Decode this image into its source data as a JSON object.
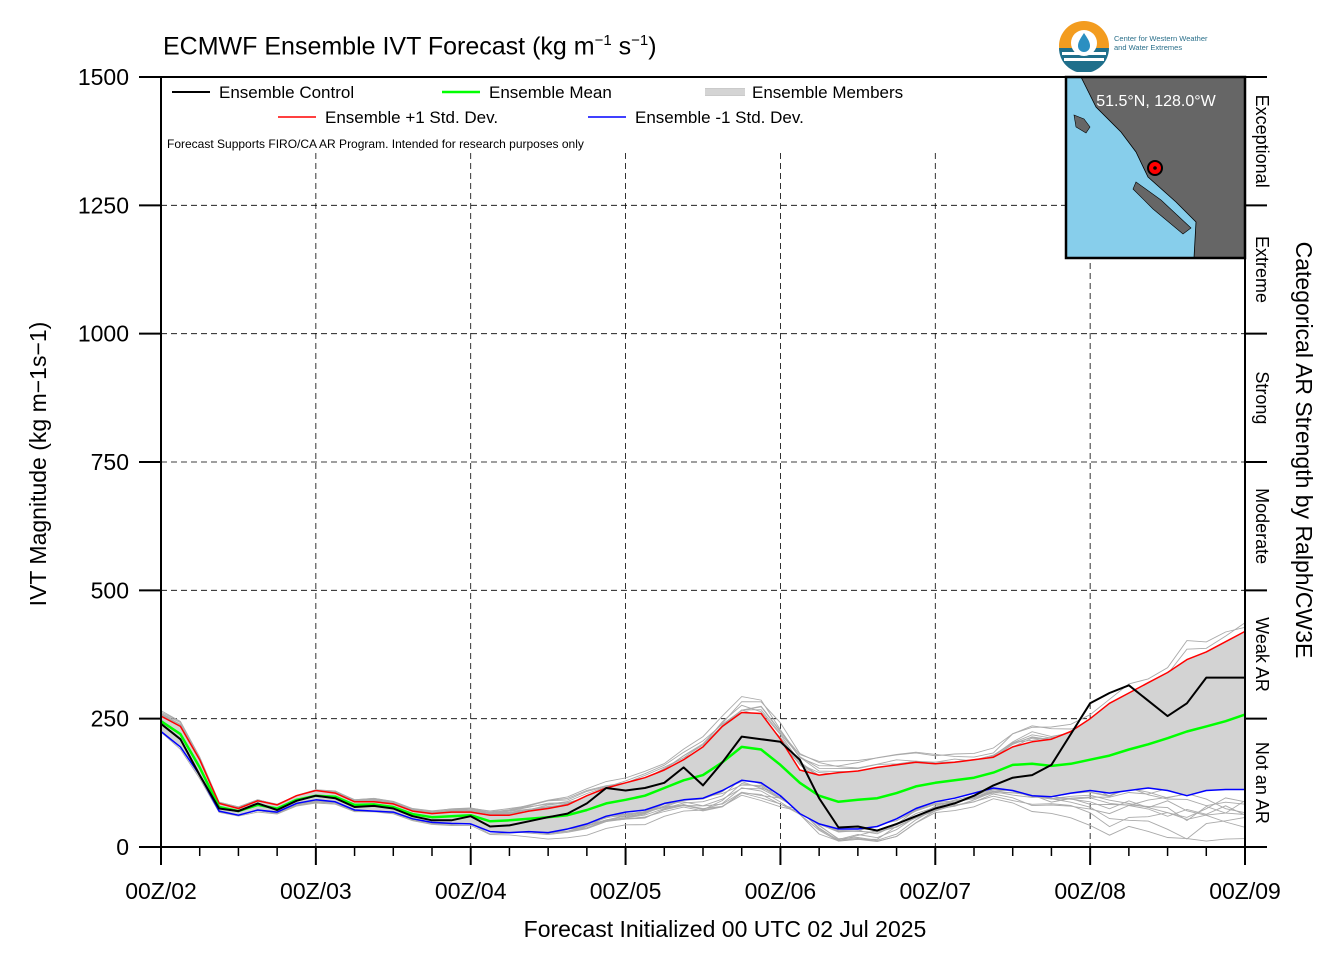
{
  "title": {
    "main": "ECMWF Ensemble IVT Forecast (kg m",
    "exp1": "−1",
    "mid": " s",
    "exp2": "−1",
    "end": ")"
  },
  "logo": {
    "line1": "Center for Western Weather",
    "line2": "and Water Extremes"
  },
  "inset": {
    "location": "51.5°N, 128.0°W",
    "ocean_color": "#87ceeb",
    "land_color": "#666666"
  },
  "notice": "Forecast Supports FIRO/CA AR Program. Intended for research purposes only",
  "colors": {
    "control": "#000000",
    "mean": "#00ff00",
    "plus_sd": "#ff0000",
    "minus_sd": "#0000ff",
    "members": "#aaaaaa",
    "spread_fill": "#d3d3d3"
  },
  "chart_data": {
    "type": "line",
    "title": "ECMWF Ensemble IVT Forecast (kg m−1 s−1)",
    "xlabel": "Forecast Initialized 00 UTC 02 Jul 2025",
    "ylabel": "IVT Magnitude (kg m−1s−1)",
    "right_label": "Categorical AR Strength by Ralph/CW3E",
    "xlim": [
      0,
      168
    ],
    "ylim": [
      0,
      1500
    ],
    "x_unit": "forecast hour",
    "x_ticks": [
      0,
      24,
      48,
      72,
      96,
      120,
      144,
      168
    ],
    "x_tick_labels": [
      "00Z/02",
      "00Z/03",
      "00Z/04",
      "00Z/05",
      "00Z/06",
      "00Z/07",
      "00Z/08",
      "00Z/09"
    ],
    "y_ticks": [
      0,
      250,
      500,
      750,
      1000,
      1250,
      1500
    ],
    "grid": true,
    "legend_position": "top-left",
    "legend": [
      "Ensemble Control",
      "Ensemble Mean",
      "Ensemble Members",
      "Ensemble +1 Std. Dev.",
      "Ensemble -1 Std. Dev."
    ],
    "categories_right": [
      {
        "label": "Not an AR",
        "range": [
          0,
          250
        ]
      },
      {
        "label": "Weak AR",
        "range": [
          250,
          500
        ]
      },
      {
        "label": "Moderate",
        "range": [
          500,
          750
        ]
      },
      {
        "label": "Strong",
        "range": [
          750,
          1000
        ]
      },
      {
        "label": "Extreme",
        "range": [
          1000,
          1250
        ]
      },
      {
        "label": "Exceptional",
        "range": [
          1250,
          1500
        ]
      }
    ],
    "series": [
      {
        "name": "Ensemble Control",
        "x": [
          0,
          3,
          6,
          9,
          12,
          15,
          18,
          21,
          24,
          27,
          30,
          33,
          36,
          39,
          42,
          45,
          48,
          51,
          54,
          57,
          60,
          63,
          66,
          69,
          72,
          75,
          78,
          81,
          84,
          87,
          90,
          93,
          96,
          99,
          102,
          105,
          108,
          111,
          114,
          117,
          120,
          123,
          126,
          129,
          132,
          135,
          138,
          141,
          144,
          147,
          150,
          153,
          156,
          159,
          162,
          165,
          168
        ],
        "y": [
          240,
          210,
          140,
          75,
          70,
          85,
          72,
          90,
          100,
          95,
          78,
          80,
          75,
          60,
          52,
          52,
          60,
          40,
          42,
          50,
          58,
          65,
          85,
          115,
          110,
          115,
          125,
          155,
          120,
          165,
          215,
          210,
          205,
          170,
          95,
          38,
          40,
          32,
          45,
          60,
          75,
          85,
          100,
          120,
          135,
          140,
          160,
          220,
          280,
          300,
          315,
          285,
          255,
          280,
          330,
          330,
          330
        ]
      },
      {
        "name": "Ensemble Mean",
        "x": [
          0,
          3,
          6,
          9,
          12,
          15,
          18,
          21,
          24,
          27,
          30,
          33,
          36,
          39,
          42,
          45,
          48,
          51,
          54,
          57,
          60,
          63,
          66,
          69,
          72,
          75,
          78,
          81,
          84,
          87,
          90,
          93,
          96,
          99,
          102,
          105,
          108,
          111,
          114,
          117,
          120,
          123,
          126,
          129,
          132,
          135,
          138,
          141,
          144,
          147,
          150,
          153,
          156,
          159,
          162,
          165,
          168
        ],
        "y": [
          245,
          220,
          155,
          78,
          70,
          82,
          75,
          92,
          100,
          98,
          82,
          83,
          78,
          64,
          58,
          60,
          62,
          50,
          52,
          55,
          58,
          62,
          72,
          85,
          92,
          100,
          115,
          130,
          140,
          165,
          195,
          190,
          160,
          125,
          100,
          88,
          92,
          95,
          105,
          118,
          125,
          130,
          135,
          145,
          160,
          162,
          158,
          162,
          170,
          178,
          190,
          200,
          212,
          225,
          235,
          245,
          258
        ]
      },
      {
        "name": "Ensemble +1 Std. Dev.",
        "x": [
          0,
          3,
          6,
          9,
          12,
          15,
          18,
          21,
          24,
          27,
          30,
          33,
          36,
          39,
          42,
          45,
          48,
          51,
          54,
          57,
          60,
          63,
          66,
          69,
          72,
          75,
          78,
          81,
          84,
          87,
          90,
          93,
          96,
          99,
          102,
          105,
          108,
          111,
          114,
          117,
          120,
          123,
          126,
          129,
          132,
          135,
          138,
          141,
          144,
          147,
          150,
          153,
          156,
          159,
          162,
          165,
          168
        ],
        "y": [
          255,
          235,
          170,
          85,
          75,
          90,
          82,
          100,
          110,
          105,
          88,
          88,
          84,
          70,
          65,
          68,
          68,
          62,
          62,
          70,
          75,
          82,
          100,
          115,
          125,
          135,
          150,
          170,
          195,
          235,
          262,
          260,
          210,
          150,
          140,
          145,
          148,
          155,
          160,
          165,
          162,
          165,
          170,
          175,
          195,
          205,
          210,
          225,
          250,
          280,
          300,
          320,
          340,
          365,
          380,
          400,
          420
        ]
      },
      {
        "name": "Ensemble -1 Std. Dev.",
        "x": [
          0,
          3,
          6,
          9,
          12,
          15,
          18,
          21,
          24,
          27,
          30,
          33,
          36,
          39,
          42,
          45,
          48,
          51,
          54,
          57,
          60,
          63,
          66,
          69,
          72,
          75,
          78,
          81,
          84,
          87,
          90,
          93,
          96,
          99,
          102,
          105,
          108,
          111,
          114,
          117,
          120,
          123,
          126,
          129,
          132,
          135,
          138,
          141,
          144,
          147,
          150,
          153,
          156,
          159,
          162,
          165,
          168
        ],
        "y": [
          225,
          195,
          140,
          70,
          62,
          72,
          68,
          85,
          92,
          88,
          72,
          70,
          68,
          55,
          48,
          46,
          45,
          30,
          28,
          30,
          28,
          35,
          45,
          60,
          68,
          72,
          85,
          92,
          95,
          110,
          130,
          125,
          100,
          65,
          45,
          35,
          35,
          40,
          55,
          75,
          88,
          95,
          105,
          115,
          110,
          100,
          98,
          105,
          110,
          105,
          110,
          115,
          110,
          100,
          110,
          112,
          112
        ]
      }
    ]
  }
}
